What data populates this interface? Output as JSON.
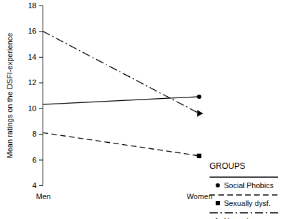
{
  "chart_data": {
    "type": "line",
    "y_label": "Mean ratings on the DSFI-experience",
    "legend_title": "GROUPS",
    "categories": [
      "Men",
      "Women"
    ],
    "series": [
      {
        "name": "Social Phobics",
        "color": "#000000",
        "line_style": "solid",
        "marker": "circle",
        "values": [
          10.3,
          10.9
        ]
      },
      {
        "name": "Sexually dysf.",
        "color": "#000000",
        "line_style": "dashed",
        "marker": "square",
        "values": [
          8.1,
          6.3
        ]
      },
      {
        "name": "Normals",
        "color": "#000000",
        "line_style": "dashdot",
        "marker": "triangle",
        "values": [
          16.0,
          9.6
        ]
      }
    ],
    "ylim": [
      4,
      18
    ],
    "yticks": [
      4,
      6,
      8,
      10,
      12,
      14,
      16,
      18
    ],
    "grid": false,
    "legend": "lower right"
  }
}
